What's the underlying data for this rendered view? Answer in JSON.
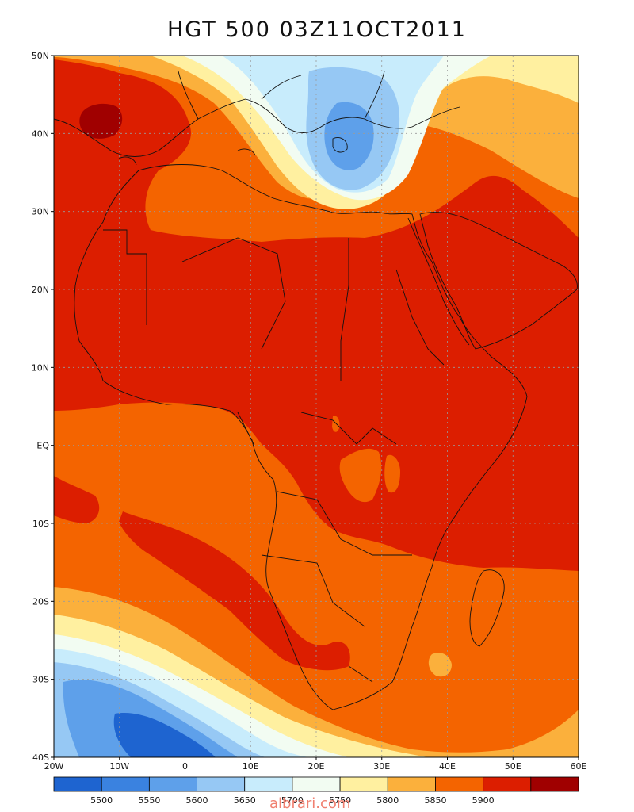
{
  "title": "HGT 500 03Z11OCT2011",
  "watermark": "albrari.com",
  "map": {
    "region": "Africa, Mediterranean and Arabian Peninsula",
    "field": "500 hPa geopotential height",
    "lat_labels": [
      "50N",
      "40N",
      "30N",
      "20N",
      "10N",
      "EQ",
      "10S",
      "20S",
      "30S",
      "40S"
    ],
    "lon_labels": [
      "20W",
      "10W",
      "0",
      "10E",
      "20E",
      "30E",
      "40E",
      "50E",
      "60E"
    ],
    "grid": "on",
    "colors": {
      "lt5500": "#1e64d0",
      "c5500": "#3a82e0",
      "c5550": "#5ea0ea",
      "c5600": "#96c8f4",
      "c5650": "#c8ecfc",
      "c5700": "#f2fcf2",
      "c5750": "#fff0a0",
      "c5800": "#fbb03c",
      "c5850": "#f46400",
      "c5900": "#dc1e00",
      "gt5900": "#a00000"
    }
  },
  "colorbar": {
    "labels": [
      "5500",
      "5550",
      "5600",
      "5650",
      "5700",
      "5750",
      "5800",
      "5850",
      "5900"
    ],
    "colors": [
      "#1e64d0",
      "#3a82e0",
      "#5ea0ea",
      "#96c8f4",
      "#c8ecfc",
      "#f2fcf2",
      "#fff0a0",
      "#fbb03c",
      "#f46400",
      "#dc1e00",
      "#a00000"
    ]
  }
}
